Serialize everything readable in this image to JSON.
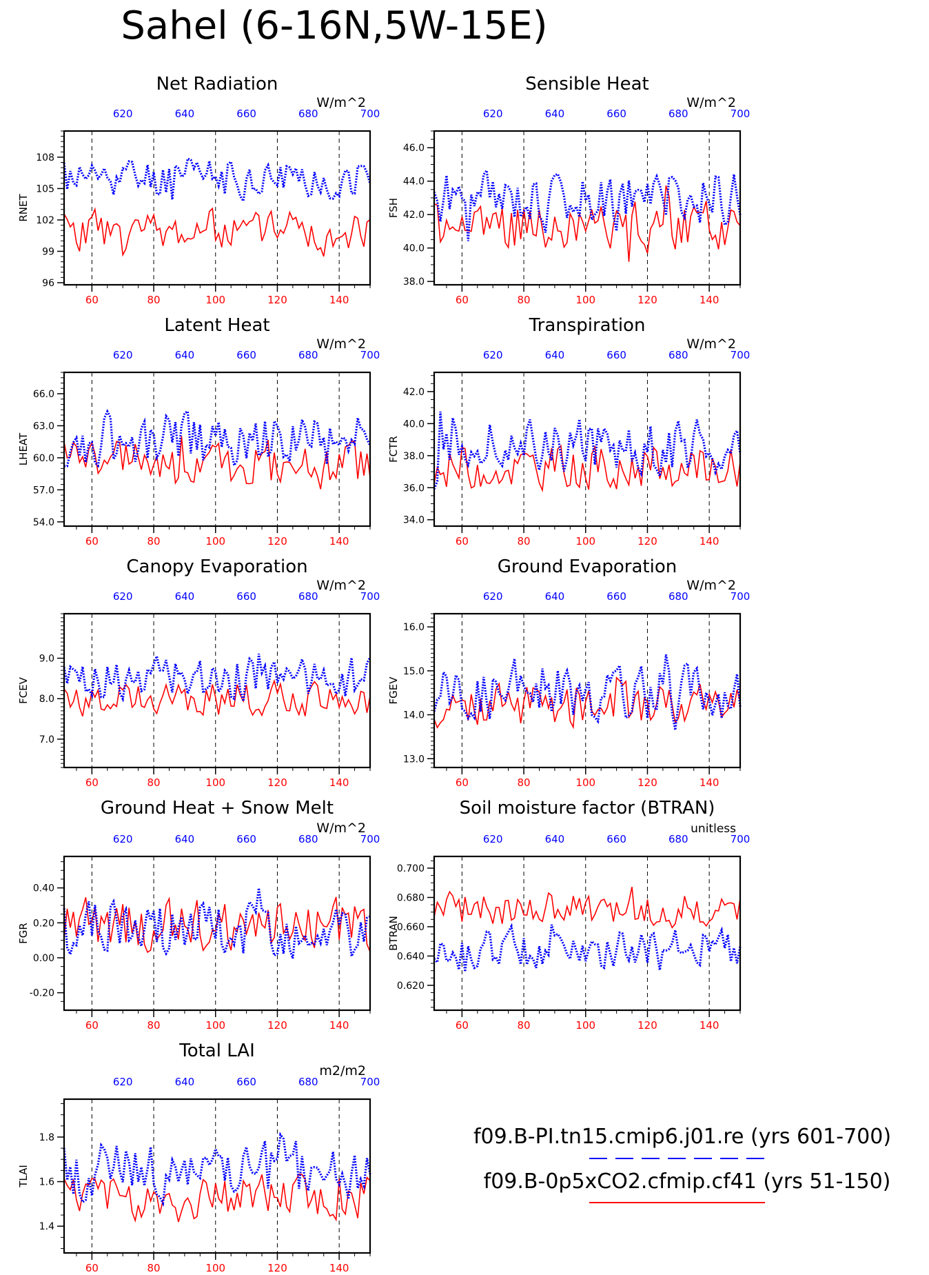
{
  "figure": {
    "title": "Sahel (6-16N,5W-15E)",
    "legend": [
      {
        "label": "f09.B-PI.tn15.cmip6.j01.re (yrs 601-700)",
        "color": "#0000ff",
        "style": "dashed"
      },
      {
        "label": "f09.B-0p5xCO2.cfmip.cf41 (yrs 51-150)",
        "color": "#ff0000",
        "style": "solid"
      }
    ]
  },
  "colors": {
    "top_axis": "#0000ff",
    "bottom_axis": "#ff0000",
    "frame": "#000000"
  },
  "chart_data": [
    {
      "type": "line",
      "title": "Net Radiation",
      "ylabel": "RNET",
      "units": "W/m^2",
      "yticks": [
        "96",
        "99",
        "102",
        "105",
        "108"
      ],
      "ytick_values": [
        96,
        99,
        102,
        105,
        108
      ],
      "ylim": [
        95.8,
        110.5
      ],
      "y_minor": 0.5,
      "x_bottom": {
        "ticks": [
          60,
          80,
          100,
          120,
          140
        ],
        "range": [
          51,
          150
        ]
      },
      "x_top": {
        "ticks": [
          620,
          640,
          660,
          680,
          700
        ],
        "range": [
          601,
          700
        ]
      },
      "dashed_gridlines_at": [
        60,
        80,
        100,
        120,
        140
      ],
      "series": [
        {
          "base": 106,
          "amp": 2,
          "seed": 11
        },
        {
          "base": 101,
          "amp": 2,
          "seed": 23
        }
      ]
    },
    {
      "type": "line",
      "title": "Sensible Heat",
      "ylabel": "FSH",
      "units": "W/m^2",
      "yticks": [
        "38.0",
        "40.0",
        "42.0",
        "44.0",
        "46.0"
      ],
      "ytick_values": [
        38,
        40,
        42,
        44,
        46
      ],
      "ylim": [
        37.8,
        47
      ],
      "y_minor": 0.5,
      "x_bottom": {
        "ticks": [
          60,
          80,
          100,
          120,
          140
        ],
        "range": [
          51,
          150
        ]
      },
      "x_top": {
        "ticks": [
          620,
          640,
          660,
          680,
          700
        ],
        "range": [
          601,
          700
        ]
      },
      "dashed_gridlines_at": [
        60,
        80,
        100,
        120,
        140
      ],
      "series": [
        {
          "base": 43,
          "amp": 1.6,
          "seed": 31
        },
        {
          "base": 41.3,
          "amp": 1.5,
          "seed": 47
        }
      ]
    },
    {
      "type": "line",
      "title": "Latent Heat",
      "ylabel": "LHEAT",
      "units": "W/m^2",
      "yticks": [
        "54.0",
        "57.0",
        "60.0",
        "63.0",
        "66.0"
      ],
      "ytick_values": [
        54,
        57,
        60,
        63,
        66
      ],
      "ylim": [
        53.6,
        68
      ],
      "y_minor": 0.5,
      "x_bottom": {
        "ticks": [
          60,
          80,
          100,
          120,
          140
        ],
        "range": [
          51,
          150
        ]
      },
      "x_top": {
        "ticks": [
          620,
          640,
          660,
          680,
          700
        ],
        "range": [
          601,
          700
        ]
      },
      "dashed_gridlines_at": [
        60,
        80,
        100,
        120,
        140
      ],
      "series": [
        {
          "base": 61.5,
          "amp": 2.6,
          "seed": 53
        },
        {
          "base": 59.3,
          "amp": 2.3,
          "seed": 61
        }
      ]
    },
    {
      "type": "line",
      "title": "Transpiration",
      "ylabel": "FCTR",
      "units": "W/m^2",
      "yticks": [
        "34.0",
        "36.0",
        "38.0",
        "40.0",
        "42.0"
      ],
      "ytick_values": [
        34,
        36,
        38,
        40,
        42
      ],
      "ylim": [
        33.6,
        43.2
      ],
      "y_minor": 0.5,
      "x_bottom": {
        "ticks": [
          60,
          80,
          100,
          120,
          140
        ],
        "range": [
          51,
          150
        ]
      },
      "x_top": {
        "ticks": [
          620,
          640,
          660,
          680,
          700
        ],
        "range": [
          601,
          700
        ]
      },
      "dashed_gridlines_at": [
        60,
        80,
        100,
        120,
        140
      ],
      "series": [
        {
          "base": 38.6,
          "amp": 1.7,
          "seed": 71
        },
        {
          "base": 37.3,
          "amp": 1.4,
          "seed": 83
        }
      ]
    },
    {
      "type": "line",
      "title": "Canopy Evaporation",
      "ylabel": "FCEV",
      "units": "W/m^2",
      "yticks": [
        "7.0",
        "8.0",
        "9.0"
      ],
      "ytick_values": [
        7,
        8,
        9
      ],
      "ylim": [
        6.3,
        10.1
      ],
      "y_minor": 0.1,
      "x_bottom": {
        "ticks": [
          60,
          80,
          100,
          120,
          140
        ],
        "range": [
          51,
          150
        ]
      },
      "x_top": {
        "ticks": [
          620,
          640,
          660,
          680,
          700
        ],
        "range": [
          601,
          700
        ]
      },
      "dashed_gridlines_at": [
        60,
        80,
        100,
        120,
        140
      ],
      "series": [
        {
          "base": 8.5,
          "amp": 0.55,
          "seed": 91
        },
        {
          "base": 8.0,
          "amp": 0.45,
          "seed": 97
        }
      ]
    },
    {
      "type": "line",
      "title": "Ground Evaporation",
      "ylabel": "FGEV",
      "units": "W/m^2",
      "yticks": [
        "13.0",
        "14.0",
        "15.0",
        "16.0"
      ],
      "ytick_values": [
        13,
        14,
        15,
        16
      ],
      "ylim": [
        12.8,
        16.3
      ],
      "y_minor": 0.1,
      "x_bottom": {
        "ticks": [
          60,
          80,
          100,
          120,
          140
        ],
        "range": [
          51,
          150
        ]
      },
      "x_top": {
        "ticks": [
          620,
          640,
          660,
          680,
          700
        ],
        "range": [
          601,
          700
        ]
      },
      "dashed_gridlines_at": [
        60,
        80,
        100,
        120,
        140
      ],
      "series": [
        {
          "base": 14.5,
          "amp": 0.65,
          "seed": 101
        },
        {
          "base": 14.2,
          "amp": 0.5,
          "seed": 113
        }
      ]
    },
    {
      "type": "line",
      "title": "Ground Heat + Snow Melt",
      "ylabel": "FGR",
      "units": "W/m^2",
      "yticks": [
        "-0.20",
        "0.00",
        "0.20",
        "0.40"
      ],
      "ytick_values": [
        -0.2,
        0,
        0.2,
        0.4
      ],
      "ylim": [
        -0.3,
        0.58
      ],
      "y_minor": 0.05,
      "x_bottom": {
        "ticks": [
          60,
          80,
          100,
          120,
          140
        ],
        "range": [
          51,
          150
        ]
      },
      "x_top": {
        "ticks": [
          620,
          640,
          660,
          680,
          700
        ],
        "range": [
          601,
          700
        ]
      },
      "dashed_gridlines_at": [
        60,
        80,
        100,
        120,
        140
      ],
      "series": [
        {
          "base": 0.17,
          "amp": 0.17,
          "seed": 127
        },
        {
          "base": 0.19,
          "amp": 0.15,
          "seed": 131
        }
      ]
    },
    {
      "type": "line",
      "title": "Soil moisture factor (BTRAN)",
      "ylabel": "BTRAN",
      "units": "unitless",
      "yticks": [
        "0.620",
        "0.640",
        "0.660",
        "0.680",
        "0.700"
      ],
      "ytick_values": [
        0.62,
        0.64,
        0.66,
        0.68,
        0.7
      ],
      "ylim": [
        0.603,
        0.708
      ],
      "y_minor": 0.005,
      "x_bottom": {
        "ticks": [
          60,
          80,
          100,
          120,
          140
        ],
        "range": [
          51,
          150
        ]
      },
      "x_top": {
        "ticks": [
          620,
          640,
          660,
          680,
          700
        ],
        "range": [
          601,
          700
        ]
      },
      "dashed_gridlines_at": [
        60,
        80,
        100,
        120,
        140
      ],
      "series": [
        {
          "base": 0.645,
          "amp": 0.014,
          "seed": 137
        },
        {
          "base": 0.672,
          "amp": 0.012,
          "seed": 149
        }
      ]
    },
    {
      "type": "line",
      "title": "Total LAI",
      "ylabel": "TLAI",
      "units": "m2/m2",
      "yticks": [
        "1.4",
        "1.6",
        "1.8"
      ],
      "ytick_values": [
        1.4,
        1.6,
        1.8
      ],
      "ylim": [
        1.28,
        1.97
      ],
      "y_minor": 0.05,
      "x_bottom": {
        "ticks": [
          60,
          80,
          100,
          120,
          140
        ],
        "range": [
          51,
          150
        ]
      },
      "x_top": {
        "ticks": [
          620,
          640,
          660,
          680,
          700
        ],
        "range": [
          601,
          700
        ]
      },
      "dashed_gridlines_at": [
        60,
        80,
        100,
        120,
        140
      ],
      "series": [
        {
          "base": 1.65,
          "amp": 0.13,
          "seed": 151
        },
        {
          "base": 1.53,
          "amp": 0.1,
          "seed": 163
        }
      ]
    }
  ]
}
